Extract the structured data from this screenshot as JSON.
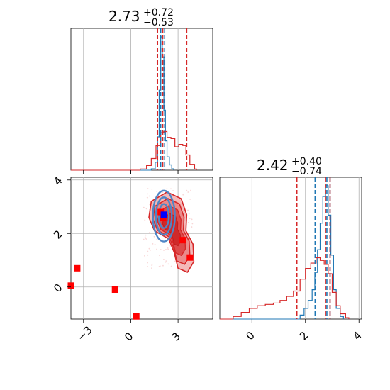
{
  "chart_data": [
    {
      "type": "histogram",
      "panel": "top-left",
      "title": {
        "value": "2.73",
        "sup": "+0.72",
        "sub": "−0.53"
      },
      "xlim": [
        -3.8,
        5.2
      ],
      "x_ticks": [
        -3,
        0,
        3
      ],
      "grid": true,
      "series": [
        {
          "color": "#1f77b4",
          "bins": [
            [
              1.3,
              0.01
            ],
            [
              1.55,
              0.06
            ],
            [
              1.7,
              0.25
            ],
            [
              1.8,
              0.6
            ],
            [
              1.9,
              1.0
            ],
            [
              2.0,
              0.85
            ],
            [
              2.1,
              0.45
            ],
            [
              2.2,
              0.22
            ],
            [
              2.3,
              0.1
            ],
            [
              2.45,
              0.04
            ],
            [
              2.6,
              0.01
            ]
          ],
          "quantiles": [
            1.68,
            1.9,
            2.15
          ]
        },
        {
          "color": "#d62728",
          "bins": [
            [
              0.6,
              0.01
            ],
            [
              1.0,
              0.04
            ],
            [
              1.3,
              0.1
            ],
            [
              1.6,
              0.21
            ],
            [
              1.9,
              0.32
            ],
            [
              2.1,
              0.33
            ],
            [
              2.3,
              0.28
            ],
            [
              2.55,
              0.27
            ],
            [
              2.8,
              0.2
            ],
            [
              3.05,
              0.22
            ],
            [
              3.3,
              0.21
            ],
            [
              3.5,
              0.13
            ],
            [
              3.75,
              0.05
            ],
            [
              4.05,
              0.01
            ]
          ],
          "quantiles": [
            1.7,
            2.03,
            3.55
          ]
        }
      ]
    },
    {
      "type": "scatter-contour",
      "panel": "bottom-left",
      "xlim": [
        -3.8,
        5.2
      ],
      "ylim": [
        -1.2,
        4.1
      ],
      "x_ticks": [
        -3,
        0,
        3
      ],
      "y_ticks": [
        0,
        2,
        4
      ],
      "grid": true,
      "red_points": [
        [
          -3.4,
          0.7
        ],
        [
          -3.8,
          0.05
        ],
        [
          -1.0,
          -0.1
        ],
        [
          0.35,
          -1.1
        ],
        [
          1.9,
          2.8
        ],
        [
          2.05,
          2.6
        ],
        [
          3.3,
          1.75
        ],
        [
          3.75,
          1.1
        ]
      ],
      "blue_point": [
        2.1,
        2.7
      ]
    },
    {
      "type": "histogram",
      "panel": "bottom-right",
      "title": {
        "value": "2.42",
        "sup": "+0.40",
        "sub": "−0.74"
      },
      "xlim": [
        -1.2,
        4.1
      ],
      "x_ticks": [
        0,
        2,
        4
      ],
      "grid": true,
      "series": [
        {
          "color": "#1f77b4",
          "bins": [
            [
              1.8,
              0.03
            ],
            [
              1.95,
              0.08
            ],
            [
              2.1,
              0.14
            ],
            [
              2.25,
              0.22
            ],
            [
              2.35,
              0.35
            ],
            [
              2.45,
              0.52
            ],
            [
              2.55,
              0.72
            ],
            [
              2.65,
              0.92
            ],
            [
              2.75,
              1.0
            ],
            [
              2.85,
              0.78
            ],
            [
              2.95,
              0.48
            ],
            [
              3.05,
              0.22
            ],
            [
              3.15,
              0.08
            ],
            [
              3.3,
              0.02
            ]
          ],
          "quantiles": [
            2.36,
            2.8,
            2.92
          ]
        },
        {
          "color": "#d62728",
          "bins": [
            [
              -0.7,
              0.02
            ],
            [
              -0.4,
              0.05
            ],
            [
              -0.1,
              0.08
            ],
            [
              0.2,
              0.1
            ],
            [
              0.5,
              0.11
            ],
            [
              0.8,
              0.12
            ],
            [
              1.05,
              0.14
            ],
            [
              1.3,
              0.17
            ],
            [
              1.55,
              0.21
            ],
            [
              1.8,
              0.3
            ],
            [
              2.0,
              0.38
            ],
            [
              2.2,
              0.42
            ],
            [
              2.4,
              0.46
            ],
            [
              2.55,
              0.44
            ],
            [
              2.7,
              0.41
            ],
            [
              2.85,
              0.34
            ],
            [
              3.0,
              0.2
            ],
            [
              3.15,
              0.1
            ],
            [
              3.3,
              0.04
            ],
            [
              3.5,
              0.01
            ]
          ],
          "quantiles": [
            1.68,
            2.75,
            2.92
          ]
        }
      ]
    }
  ]
}
